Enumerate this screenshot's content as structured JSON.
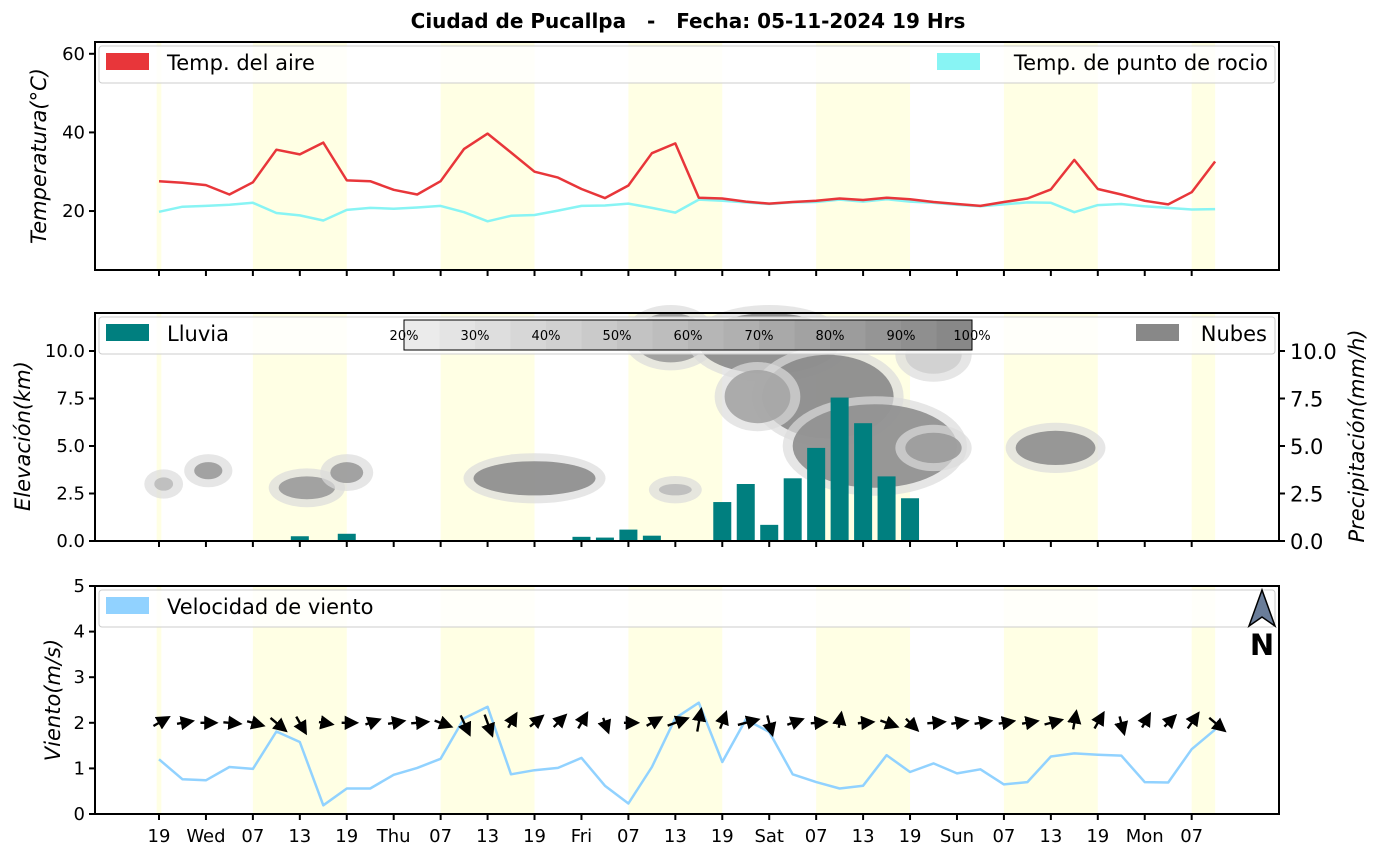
{
  "title": "Ciudad de Pucallpa   -   Fecha: 05-11-2024 19 Hrs",
  "x_ticks": [
    "19",
    "Wed",
    "07",
    "13",
    "19",
    "Thu",
    "07",
    "13",
    "19",
    "Fri",
    "07",
    "13",
    "19",
    "Sat",
    "07",
    "13",
    "19",
    "Sun",
    "07",
    "13",
    "19",
    "Mon",
    "07"
  ],
  "colors": {
    "air": "#e8363a",
    "dew": "#88f4f4",
    "rain": "#007f7f",
    "cloud": "#888888",
    "wind": "#91d2ff",
    "daylight": "#ffffe4"
  },
  "chart_data": [
    {
      "type": "line",
      "name": "temperature",
      "ylabel": "Temperatura(°C)",
      "ylim": [
        5,
        63
      ],
      "yticks": [
        "20",
        "40",
        "60"
      ],
      "legend": {
        "air": "Temp. del aire",
        "dew": "Temp. de punto de rocio"
      },
      "series": [
        {
          "name": "Temp. del aire",
          "values": [
            27.6,
            27.2,
            26.6,
            24.2,
            27.3,
            35.6,
            34.4,
            37.4,
            27.8,
            27.6,
            25.4,
            24.2,
            27.6,
            35.8,
            39.7,
            34.9,
            30.0,
            28.5,
            25.6,
            23.3,
            26.5,
            34.7,
            37.2,
            23.4,
            23.2,
            22.4,
            21.9,
            22.3,
            22.6,
            23.2,
            22.8,
            23.4,
            23.0,
            22.3,
            21.8,
            21.3,
            22.3,
            23.2,
            25.5,
            33.0,
            25.6,
            24.2,
            22.6,
            21.7,
            24.8,
            32.6
          ]
        },
        {
          "name": "Temp. de punto de rocio",
          "values": [
            19.8,
            21.1,
            21.3,
            21.6,
            22.1,
            19.5,
            18.9,
            17.6,
            20.3,
            20.8,
            20.6,
            20.9,
            21.3,
            19.7,
            17.4,
            18.8,
            19.0,
            20.1,
            21.3,
            21.4,
            21.9,
            20.8,
            19.6,
            22.9,
            22.6,
            22.2,
            21.8,
            22.2,
            22.3,
            22.9,
            22.4,
            23.0,
            22.4,
            22.1,
            21.6,
            21.2,
            21.7,
            22.2,
            22.1,
            19.7,
            21.5,
            21.8,
            21.2,
            20.8,
            20.4,
            20.5
          ]
        }
      ]
    },
    {
      "type": "bar",
      "name": "precipitation-clouds",
      "ylabel": "Elevación(km)",
      "y2label": "Precipitación(mm/h)",
      "ylim": [
        0,
        12
      ],
      "yticks": [
        "0.0",
        "2.5",
        "5.0",
        "7.5",
        "10.0"
      ],
      "legend": {
        "rain": "Lluvia",
        "cloud": "Nubes"
      },
      "colorbar_labels": [
        "20%",
        "30%",
        "40%",
        "50%",
        "60%",
        "70%",
        "80%",
        "90%",
        "100%"
      ],
      "rain_mmh": [
        0,
        0,
        0,
        0,
        0,
        0,
        0.25,
        0,
        0.38,
        0,
        0,
        0,
        0,
        0,
        0,
        0,
        0,
        0,
        0.22,
        0.18,
        0.6,
        0.28,
        0,
        0,
        2.05,
        3.0,
        0.85,
        3.3,
        4.9,
        7.55,
        6.2,
        3.4,
        2.25,
        0,
        0,
        0,
        0,
        0,
        0,
        0,
        0,
        0,
        0,
        0,
        0,
        0
      ]
    },
    {
      "type": "line",
      "name": "wind",
      "ylabel": "Viento(m/s)",
      "ylim": [
        0,
        5
      ],
      "yticks": [
        "0",
        "1",
        "2",
        "3",
        "4",
        "5"
      ],
      "legend": {
        "wind": "Velocidad de viento"
      },
      "north_label": "N",
      "series": [
        {
          "name": "Velocidad de viento",
          "values": [
            1.2,
            0.76,
            0.74,
            1.03,
            0.99,
            1.81,
            1.58,
            0.19,
            0.56,
            0.56,
            0.86,
            1.01,
            1.21,
            2.1,
            2.35,
            0.87,
            0.96,
            1.01,
            1.23,
            0.62,
            0.23,
            1.03,
            2.1,
            2.44,
            1.14,
            2.07,
            1.8,
            0.87,
            0.7,
            0.56,
            0.62,
            1.29,
            0.92,
            1.11,
            0.89,
            0.98,
            0.65,
            0.7,
            1.26,
            1.33,
            1.3,
            1.28,
            0.7,
            0.69,
            1.42,
            1.85
          ]
        }
      ]
    }
  ]
}
